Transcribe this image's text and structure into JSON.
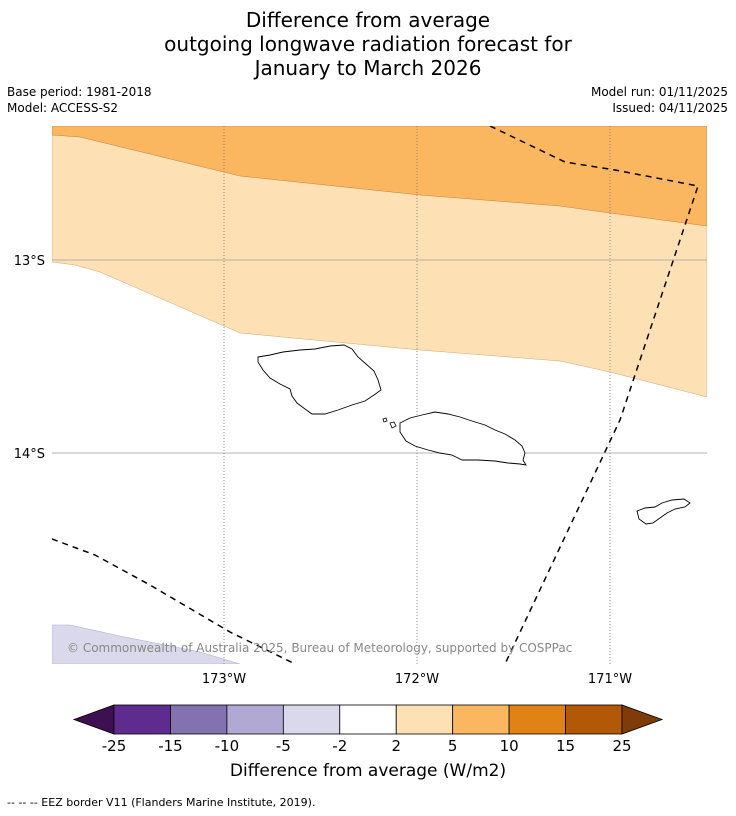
{
  "title": {
    "line1": "Difference from average",
    "line2": "outgoing longwave radiation forecast for",
    "line3": "January to March 2026"
  },
  "meta": {
    "base_period": "Base period: 1981-2018",
    "model": "Model: ACCESS-S2",
    "model_run": "Model run: 01/11/2025",
    "issued": "Issued: 04/11/2025"
  },
  "map": {
    "lat_labels": [
      "13°S",
      "14°S"
    ],
    "lon_labels": [
      "173°W",
      "172°W",
      "171°W"
    ],
    "copyright": "© Commonwealth of Australia 2025, Bureau of Meteorology, supported by COSPPac"
  },
  "colorbar": {
    "ticks": [
      "-25",
      "-15",
      "-10",
      "-5",
      "-2",
      "2",
      "5",
      "10",
      "15",
      "25"
    ],
    "colors": {
      "below_min": "#3f0f53",
      "bins": [
        "#5e2b8e",
        "#8472b0",
        "#b1a9d3",
        "#d9d9eb",
        "#ffffff",
        "#fde0b4",
        "#fbb660",
        "#e08214",
        "#b35806"
      ],
      "above_max": "#7f3b08"
    },
    "title": "Difference from average (W/m2)"
  },
  "footnote": "--  --  -- EEZ border V11 (Flanders Marine Institute, 2019)."
}
